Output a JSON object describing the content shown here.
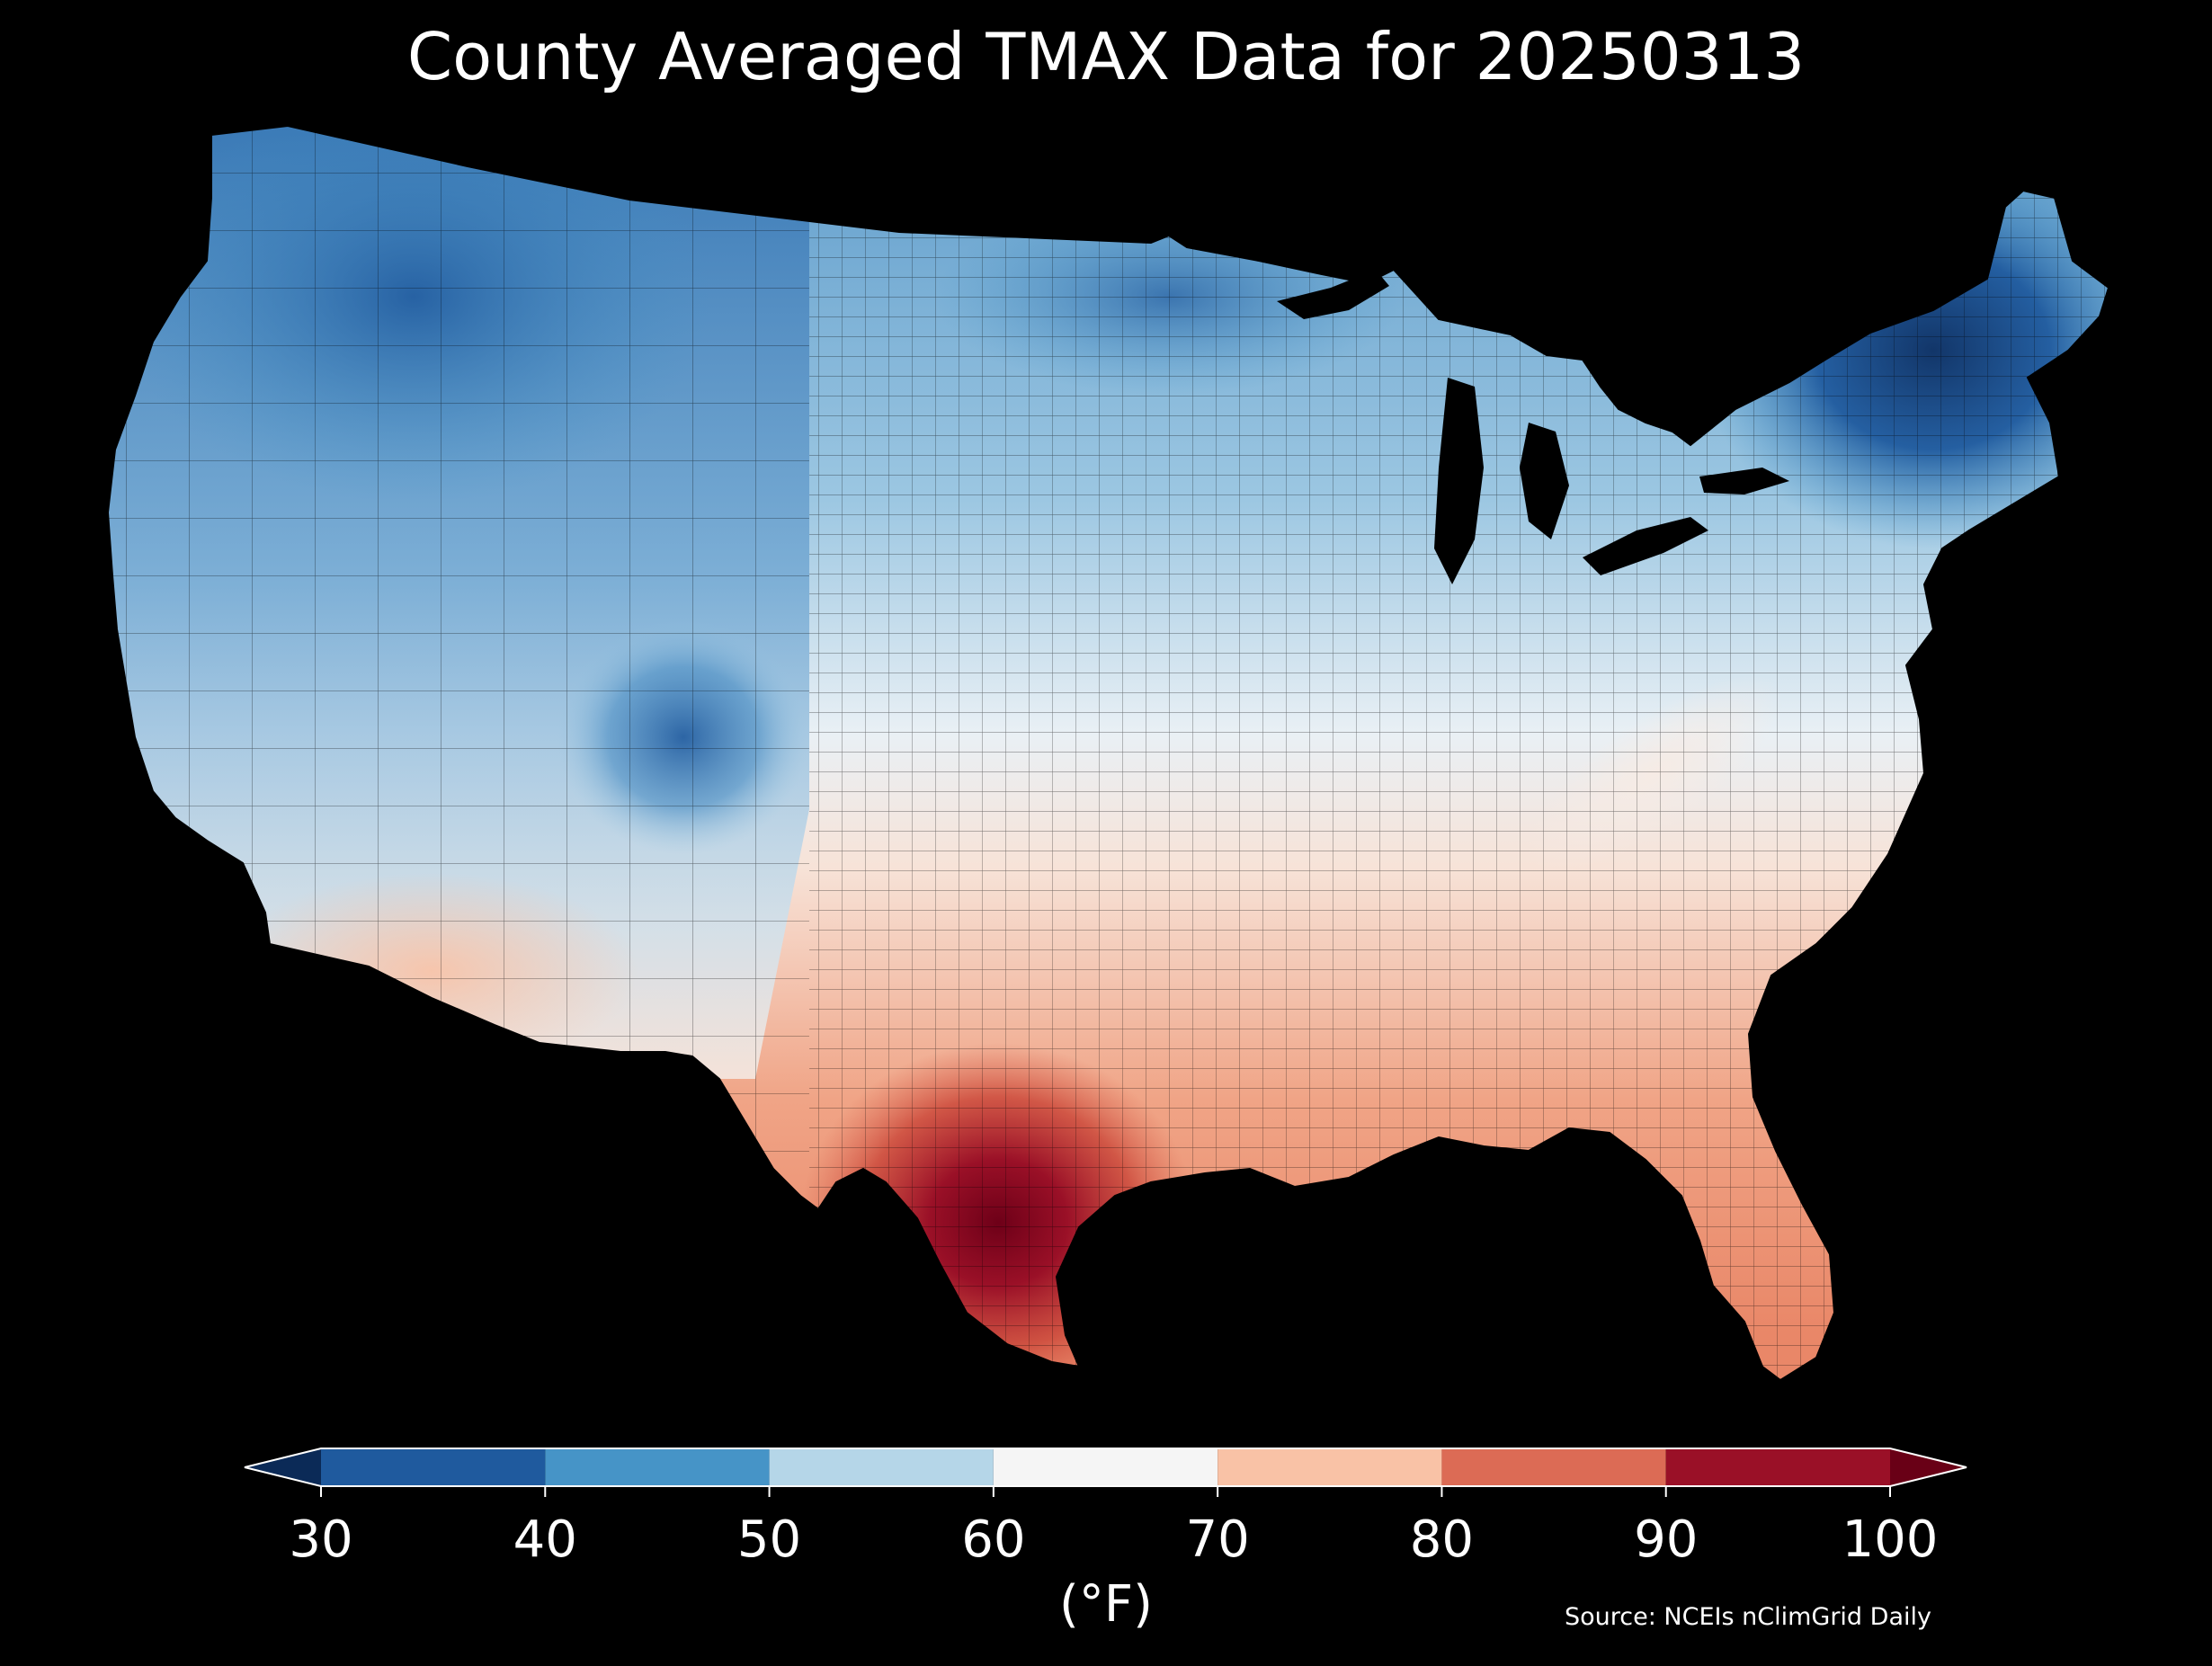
{
  "title": "County Averaged TMAX Data for 20250313",
  "legend": {
    "ticks": [
      "30",
      "40",
      "50",
      "60",
      "70",
      "80",
      "90",
      "100"
    ],
    "units": "(°F)",
    "bins": [
      {
        "from": 30,
        "to": 40,
        "color": "#1f5a9e"
      },
      {
        "from": 40,
        "to": 50,
        "color": "#4694c7"
      },
      {
        "from": 50,
        "to": 60,
        "color": "#b5d6e8"
      },
      {
        "from": 60,
        "to": 70,
        "color": "#f5f5f5"
      },
      {
        "from": 70,
        "to": 80,
        "color": "#f9c2a6"
      },
      {
        "from": 80,
        "to": 90,
        "color": "#dc6b55"
      },
      {
        "from": 90,
        "to": 100,
        "color": "#9a1027"
      }
    ],
    "under_color": "#0b2a57",
    "over_color": "#690016"
  },
  "source": "Source: NCEIs nClimGrid Daily",
  "map": {
    "region": "contiguous-united-states",
    "cold_color": "#0c2f63",
    "hot_color": "#6e0018"
  }
}
